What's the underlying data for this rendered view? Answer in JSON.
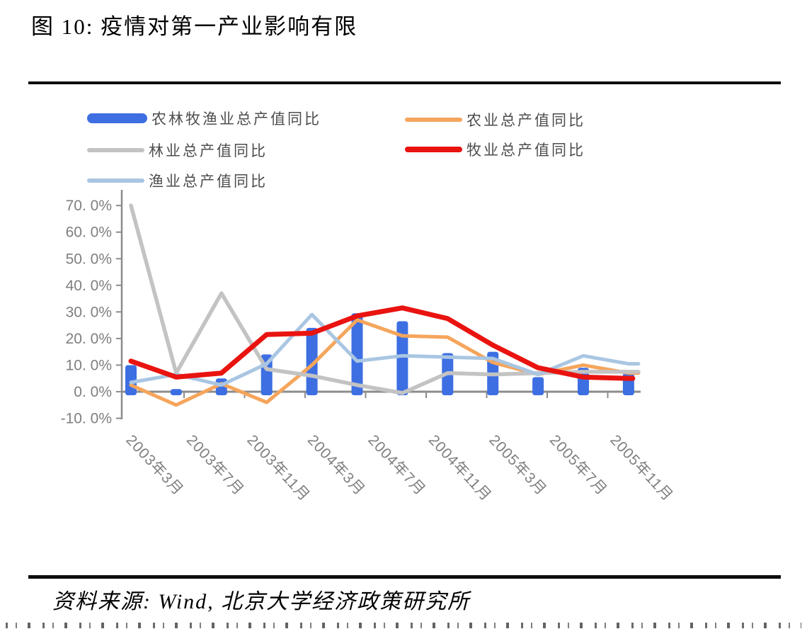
{
  "figure": {
    "title": "图 10: 疫情对第一产业影响有限",
    "source": "资料来源: Wind, 北京大学经济政策研究所"
  },
  "chart_data": {
    "type": "combo_bar_line",
    "unit": "percent_yoy",
    "title": "图 10: 疫情对第一产业影响有限",
    "x_axis_labels": [
      "2003年3月",
      "2003年7月",
      "2003年11月",
      "2004年3月",
      "2004年7月",
      "2004年11月",
      "2005年3月",
      "2005年7月",
      "2005年11月"
    ],
    "y_tick_labels": [
      "70. 0%",
      "60. 0%",
      "50. 0%",
      "40. 0%",
      "30. 0%",
      "20. 0%",
      "10. 0%",
      "0. 0%",
      "-10. 0%"
    ],
    "ylim": [
      -10,
      70
    ],
    "points_per_series": 12,
    "axis_color": "#8c8c8c",
    "series": [
      {
        "name": "农林牧渔业总产值同比",
        "type": "bar",
        "color": "#3d6fe3",
        "values": [
          10,
          1,
          5,
          14,
          24,
          29.5,
          26.5,
          14.5,
          15,
          5.5,
          9,
          7
        ]
      },
      {
        "name": "农业总产值同比",
        "type": "line",
        "color": "#f5a55c",
        "values": [
          2.5,
          -5,
          3,
          -4,
          10,
          27,
          21,
          20.5,
          11,
          6.5,
          10,
          7
        ]
      },
      {
        "name": "林业总产值同比",
        "type": "line",
        "color": "#c3c3c3",
        "values": [
          70,
          7,
          37,
          8.5,
          6,
          2.5,
          -0.5,
          7,
          6.5,
          7,
          7.5,
          7.5
        ]
      },
      {
        "name": "牧业总产值同比",
        "type": "line",
        "color": "#e91310",
        "values": [
          11.5,
          5.5,
          7,
          21.5,
          22,
          28.5,
          31.5,
          27.5,
          17.5,
          9,
          5.5,
          5
        ]
      },
      {
        "name": "渔业总产值同比",
        "type": "line",
        "color": "#a9c6e2",
        "values": [
          3.5,
          6.5,
          2.5,
          10.5,
          29,
          11.5,
          13.5,
          13,
          12.5,
          6.5,
          13.5,
          10.5
        ]
      }
    ]
  }
}
